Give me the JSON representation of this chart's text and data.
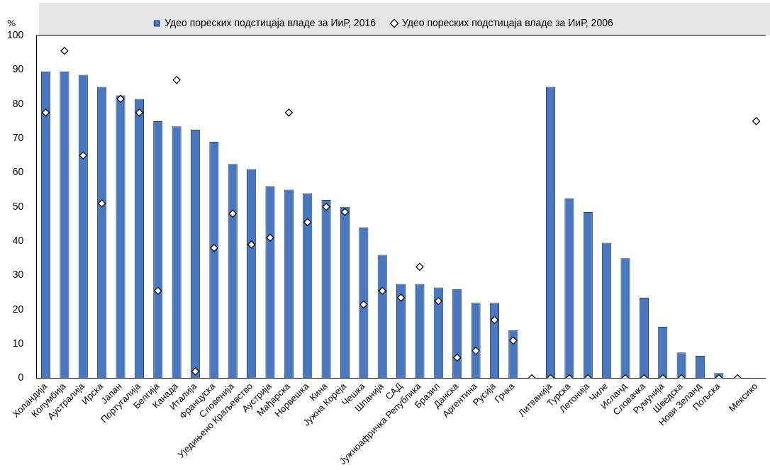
{
  "chart_data": {
    "type": "bar",
    "ylabel": "%",
    "categories": [
      "Холандија",
      "Колумбија",
      "Аустралија",
      "Ирска",
      "Јапан",
      "Португалија",
      "Белгија",
      "Канада",
      "Италија",
      "Француска",
      "Словенија",
      "Уједињено Краљевство",
      "Аустрија",
      "Мађарска",
      "Норвешка",
      "Кина",
      "Јужна Кореја",
      "Чешка",
      "Шпанија",
      "САД",
      "Јужноафричка Република",
      "Бразил",
      "Данска",
      "Аргентина",
      "Русија",
      "Грчка",
      null,
      "Литванија",
      "Турска",
      "Летонија",
      "Чиле",
      "Исланд",
      "Словачка",
      "Румунија",
      "Шведска",
      "Нови Зеланд",
      "Пољска",
      null,
      "Мексико"
    ],
    "series": [
      {
        "name": "Удео пореских подстицаја владе за ИиР, 2016",
        "color": "#4a78c0",
        "values": [
          89.5,
          89.5,
          88.5,
          85,
          82.5,
          81.5,
          75,
          73.5,
          72.5,
          69,
          62.5,
          61,
          56,
          55,
          54,
          52,
          50,
          44,
          36,
          27.5,
          27.5,
          26.5,
          26,
          22,
          22,
          14,
          null,
          85,
          52.5,
          48.5,
          39.5,
          35,
          23.5,
          15,
          7.5,
          6.5,
          1.5,
          null,
          0
        ]
      },
      {
        "name": "Удео пореских подстицаја владе за ИиР, 2006",
        "type": "scatter",
        "color": "#ffffff",
        "values": [
          77.5,
          95.5,
          65,
          51,
          81.5,
          77.5,
          25.5,
          87,
          2,
          38,
          48,
          39,
          41,
          77.5,
          45.5,
          50,
          48.5,
          21.5,
          25.5,
          23.5,
          32.5,
          22.5,
          6,
          8,
          17,
          11,
          0,
          0,
          0,
          0,
          null,
          0,
          0,
          0,
          0,
          null,
          0,
          0,
          75
        ]
      }
    ],
    "ylim": [
      0,
      100
    ],
    "yticks": [
      0,
      10,
      20,
      30,
      40,
      50,
      60,
      70,
      80,
      90,
      100
    ],
    "grid": false,
    "legend": "top",
    "marker": "diamond"
  }
}
